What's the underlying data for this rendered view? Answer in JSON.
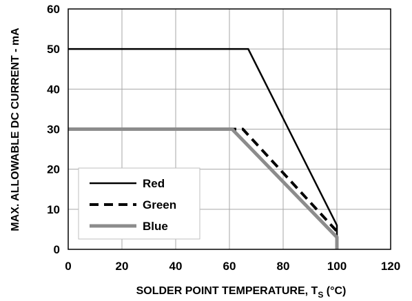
{
  "chart_data": {
    "type": "line",
    "title": "",
    "xlabel": "SOLDER POINT TEMPERATURE, T",
    "xlabel_subscript": "S",
    "xlabel_suffix": " (°C)",
    "ylabel": "MAX. ALLOWABLE DC CURRENT - mA",
    "xlim": [
      0,
      120
    ],
    "ylim": [
      0,
      60
    ],
    "xticks": [
      0,
      20,
      40,
      60,
      80,
      100,
      120
    ],
    "yticks": [
      0,
      10,
      20,
      30,
      40,
      50,
      60
    ],
    "xtick_labels": [
      "0",
      "20",
      "40",
      "60",
      "80",
      "100",
      "120"
    ],
    "ytick_labels": [
      "0",
      "10",
      "20",
      "30",
      "40",
      "50",
      "60"
    ],
    "grid": true,
    "legend_position": "bottom-left",
    "series": [
      {
        "name": "Red",
        "color": "#000000",
        "style": "solid",
        "points": [
          [
            0,
            50
          ],
          [
            67,
            50
          ],
          [
            100,
            6
          ],
          [
            100,
            0
          ]
        ]
      },
      {
        "name": "Green",
        "color": "#000000",
        "style": "dashed",
        "points": [
          [
            0,
            30
          ],
          [
            65,
            30
          ],
          [
            100,
            4.5
          ],
          [
            100,
            0
          ]
        ]
      },
      {
        "name": "Blue",
        "color": "#8c8c8c",
        "style": "solid",
        "points": [
          [
            0,
            30
          ],
          [
            61,
            30
          ],
          [
            100,
            3
          ],
          [
            100,
            0
          ]
        ]
      }
    ]
  }
}
